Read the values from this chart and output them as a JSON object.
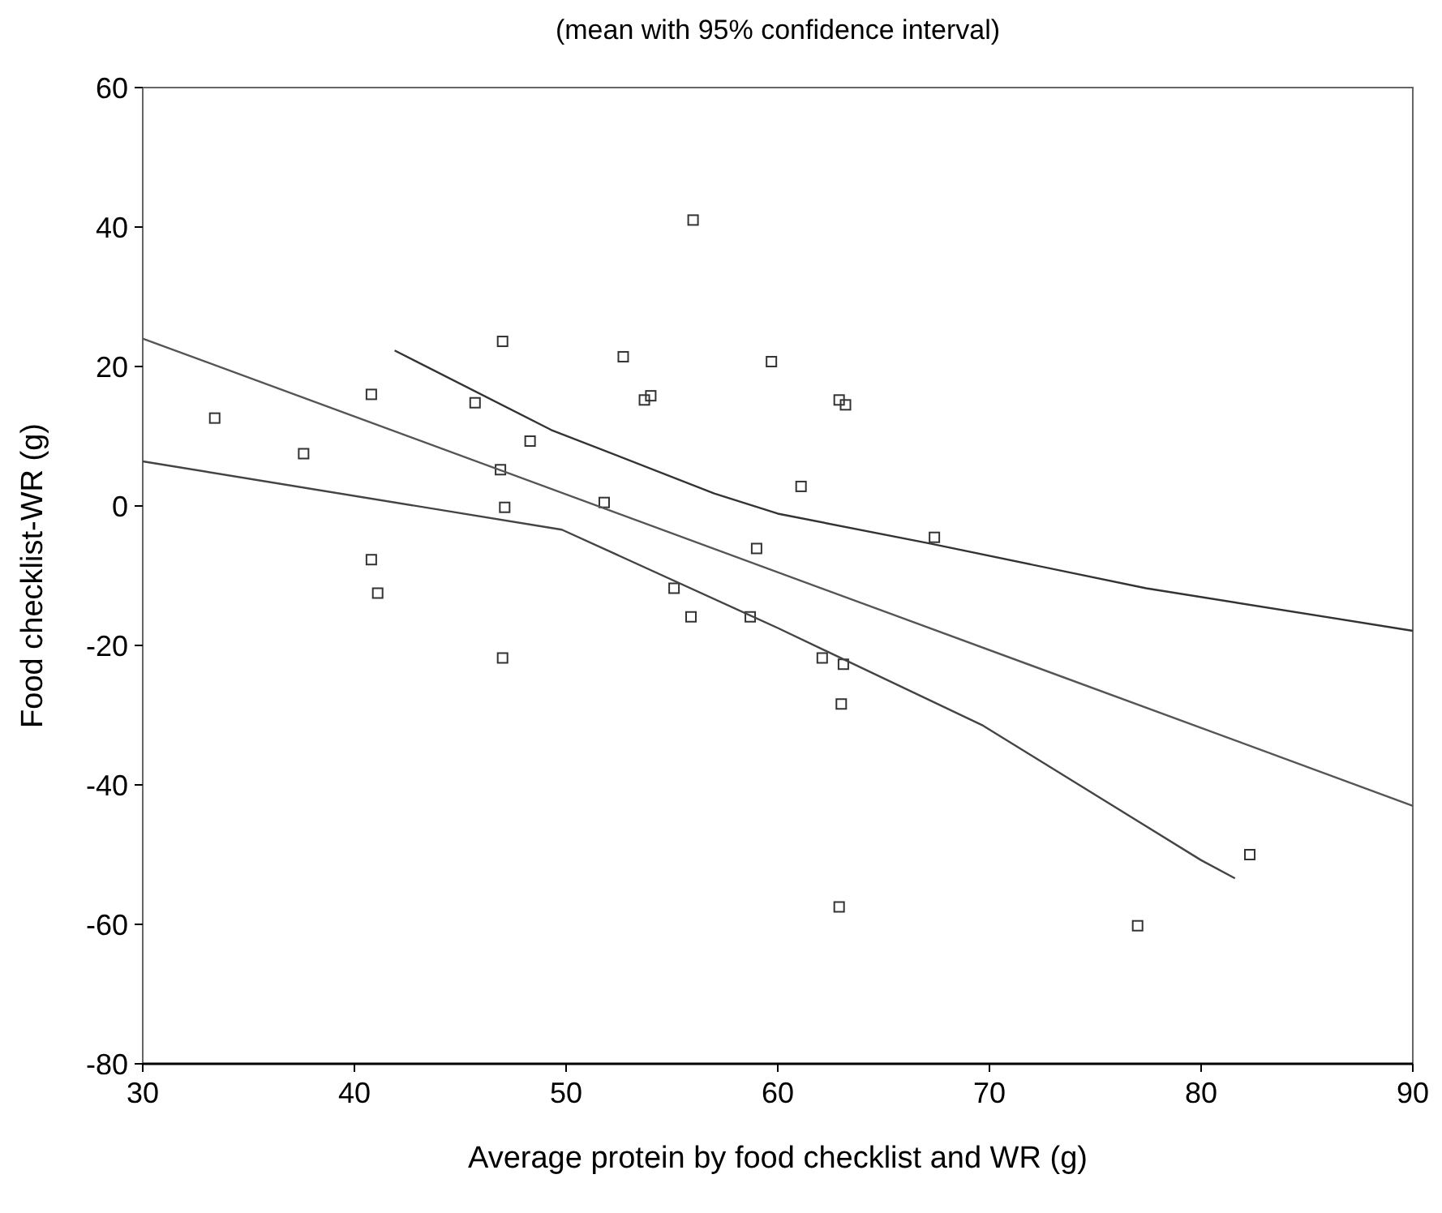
{
  "chart_data": {
    "type": "scatter",
    "title": "(mean with 95% confidence interval)",
    "xlabel": "Average protein by food checklist and WR (g)",
    "ylabel": "Food checklist-WR (g)",
    "xlim": [
      30,
      90
    ],
    "ylim": [
      -80,
      60
    ],
    "xticks": [
      30,
      40,
      50,
      60,
      70,
      80,
      90
    ],
    "yticks": [
      -80,
      -60,
      -40,
      -20,
      0,
      20,
      40,
      60
    ],
    "grid": false,
    "line_style": "solid",
    "series": [
      {
        "marker": "square",
        "color": "#333333",
        "x": [
          33.4,
          37.6,
          40.8,
          56.0,
          47.0,
          52.7,
          59.7,
          45.7,
          53.7,
          54.0,
          48.3,
          46.9,
          51.8,
          47.1,
          59.0,
          40.8,
          41.1,
          55.1,
          55.9,
          58.7,
          47.0,
          62.9,
          63.2,
          61.1,
          67.4,
          62.1,
          63.1,
          63.0,
          62.9,
          77.0,
          82.3
        ],
        "values": [
          12.6,
          7.5,
          16,
          41,
          23.6,
          21.4,
          20.7,
          14.8,
          15.2,
          15.8,
          9.3,
          5.2,
          0.5,
          -0.2,
          -6.1,
          -7.7,
          -12.5,
          -11.8,
          -15.9,
          -15.9,
          -21.8,
          15.2,
          14.5,
          2.8,
          -4.5,
          -21.8,
          -22.7,
          -28.4,
          -57.5,
          -60.2,
          -50
        ]
      },
      {
        "type": "line",
        "marker": "none",
        "color": "#555555",
        "x": [
          30,
          90
        ],
        "values": [
          24,
          -43
        ]
      },
      {
        "type": "line",
        "marker": "none",
        "color": "#333333",
        "x": [
          41.9,
          49.3,
          57,
          60,
          67.2,
          77.4,
          90
        ],
        "values": [
          22.3,
          10.9,
          1.8,
          -1.1,
          -5.4,
          -11.8,
          -17.9
        ]
      },
      {
        "type": "line",
        "marker": "none",
        "color": "#444444",
        "x": [
          30,
          49.8,
          60,
          69.7,
          80,
          81.6
        ],
        "values": [
          6.4,
          -3.4,
          -17.5,
          -31.5,
          -50.8,
          -53.4
        ]
      }
    ]
  }
}
